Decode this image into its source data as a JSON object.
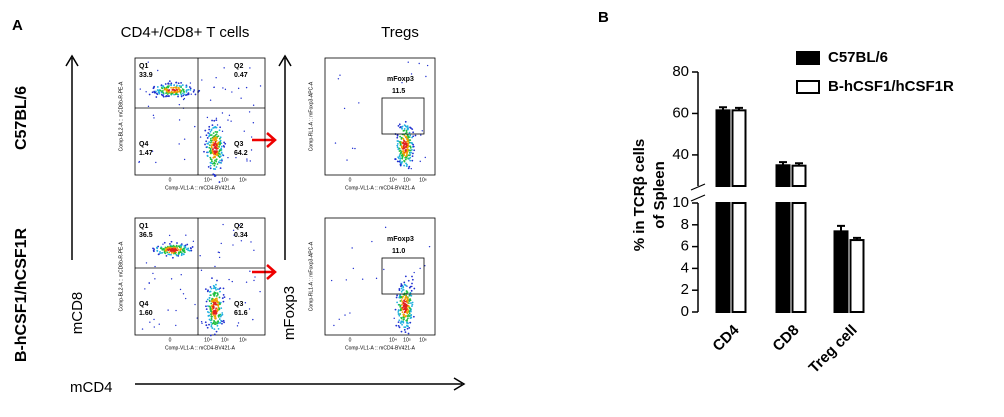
{
  "panel_a": {
    "label": "A",
    "column_titles": [
      "CD4+/CD8+ T cells",
      "Tregs"
    ],
    "row_labels": [
      "C57BL/6",
      "B-hCSF1/hCSF1R"
    ],
    "axis_labels": {
      "left": "mCD8",
      "middle": "mFoxp3",
      "bottom": "mCD4"
    },
    "plot_axis_titles": {
      "quad_x": "Comp-VL1-A :: mCD4-BV421-A",
      "quad_y": "Comp-BL2-A :: mCD8b-R-PE-A",
      "treg_x": "Comp-VL1-A :: mCD4-BV421-A",
      "treg_y": "Comp-RL1-A :: mFoxp3-APC-A"
    },
    "plot_x_ticks": [
      "0",
      "10⁴",
      "10⁵",
      "10⁶"
    ],
    "plots": [
      {
        "quadrants": [
          {
            "name": "Q1",
            "value": "33.9"
          },
          {
            "name": "Q2",
            "value": "0.47"
          },
          {
            "name": "Q3",
            "value": "64.2"
          },
          {
            "name": "Q4",
            "value": "1.47"
          }
        ],
        "gate": {
          "name": "mFoxp3",
          "value": "11.5"
        }
      },
      {
        "quadrants": [
          {
            "name": "Q1",
            "value": "36.5"
          },
          {
            "name": "Q2",
            "value": "0.34"
          },
          {
            "name": "Q3",
            "value": "61.6"
          },
          {
            "name": "Q4",
            "value": "1.60"
          }
        ],
        "gate": {
          "name": "mFoxp3",
          "value": "11.0"
        }
      }
    ]
  },
  "chart_data": {
    "type": "bar",
    "panel_label": "B",
    "ylabel": [
      "% in TCRβ cells",
      "of Spleen"
    ],
    "categories": [
      "CD4",
      "CD8",
      "Treg cell"
    ],
    "series": [
      {
        "name": "C57BL/6",
        "color": "#000000",
        "values": [
          61.5,
          35,
          7.4
        ],
        "errors": [
          1.5,
          1.5,
          0.5
        ]
      },
      {
        "name": "B-hCSF1/hCSF1R",
        "color": "#ffffff",
        "values": [
          61.5,
          34.8,
          6.6
        ],
        "errors": [
          1.2,
          1.2,
          0.2
        ]
      }
    ],
    "segments": [
      {
        "ylim": [
          0,
          10
        ],
        "yticks": [
          0,
          2,
          4,
          6,
          8,
          10
        ]
      },
      {
        "ylim": [
          25,
          80
        ],
        "yticks": [
          40,
          60,
          80
        ]
      }
    ],
    "legend": "upper right"
  }
}
